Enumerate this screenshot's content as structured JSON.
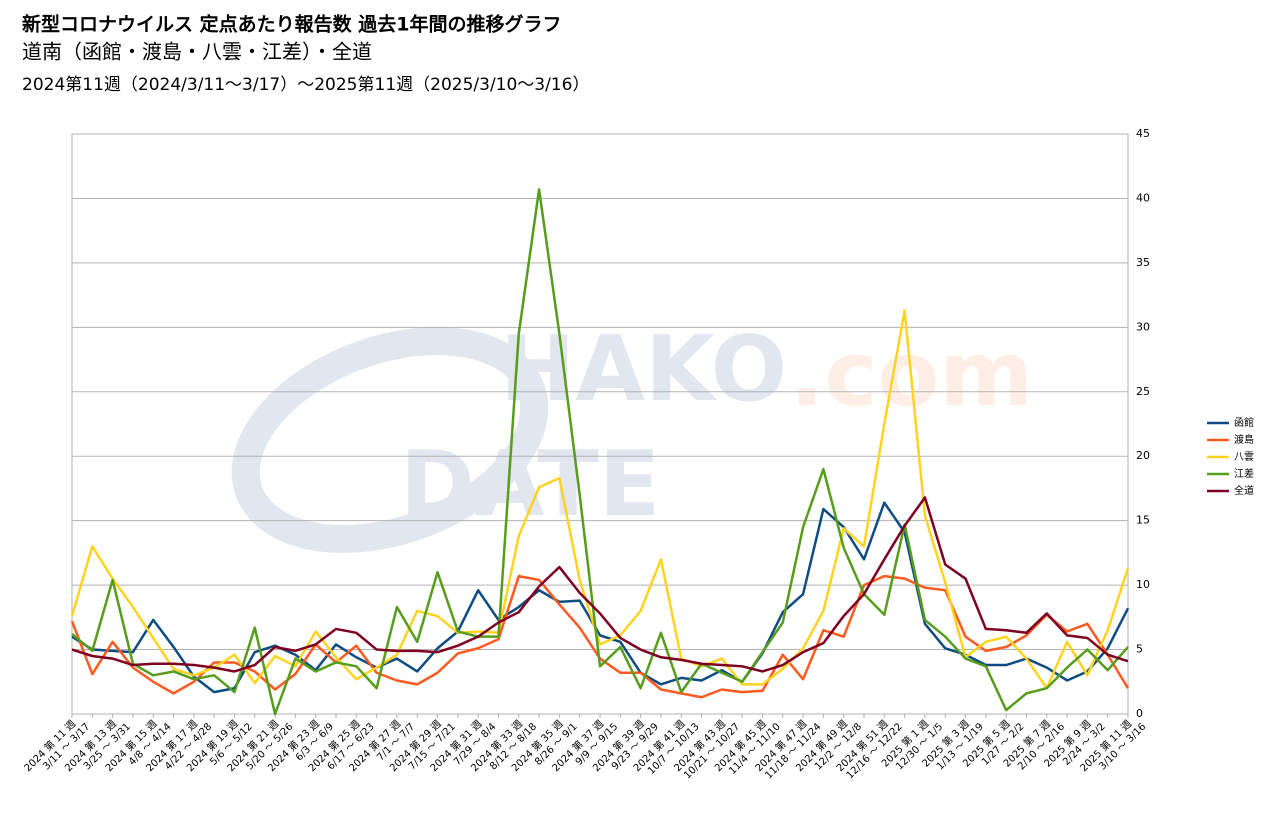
{
  "chart_data": {
    "type": "line",
    "title": "新型コロナウイルス 定点あたり報告数 過去1年間の推移グラフ",
    "subtitle": "道南（函館・渡島・八雲・江差）・全道",
    "period": "2024第11週（2024/3/11～3/17）～2025第11週（2025/3/10～3/16）",
    "watermark": [
      "HAKO",
      "DATE",
      ".com"
    ],
    "categories": [
      [
        "2024 第 11 週",
        "3/11 ～ 3/17"
      ],
      null,
      [
        "2024 第 13 週",
        "3/25 ～ 3/31"
      ],
      null,
      [
        "2024 第 15 週",
        "4/8 ～ 4/14"
      ],
      null,
      [
        "2024 第 17 週",
        "4/22 ～ 4/28"
      ],
      null,
      [
        "2024 第 19 週",
        "5/6 ～ 5/12"
      ],
      null,
      [
        "2024 第 21 週",
        "5/20 ～ 5/26"
      ],
      null,
      [
        "2024 第 23 週",
        "6/3 ～ 6/9"
      ],
      null,
      [
        "2024 第 25 週",
        "6/17 ～ 6/23"
      ],
      null,
      [
        "2024 第 27 週",
        "7/1 ～ 7/7"
      ],
      null,
      [
        "2024 第 29 週",
        "7/15 ～ 7/21"
      ],
      null,
      [
        "2024 第 31 週",
        "7/29 ～ 8/4"
      ],
      null,
      [
        "2024 第 33 週",
        "8/12 ～ 8/18"
      ],
      null,
      [
        "2024 第 35 週",
        "8/26 ～ 9/1"
      ],
      null,
      [
        "2024 第 37 週",
        "9/9 ～ 9/15"
      ],
      null,
      [
        "2024 第 39 週",
        "9/23 ～ 9/29"
      ],
      null,
      [
        "2024 第 41 週",
        "10/7 ～ 10/13"
      ],
      null,
      [
        "2024 第 43 週",
        "10/21 ～ 10/27"
      ],
      null,
      [
        "2024 第 45 週",
        "11/4 ～ 11/10"
      ],
      null,
      [
        "2024 第 47 週",
        "11/18 ～ 11/24"
      ],
      null,
      [
        "2024 第 49 週",
        "12/2 ～ 12/8"
      ],
      null,
      [
        "2024 第 51 週",
        "12/16 ～ 12/22"
      ],
      null,
      [
        "2025 第 1 週",
        "12/30 ～ 1/5"
      ],
      null,
      [
        "2025 第 3 週",
        "1/13 ～ 1/19"
      ],
      null,
      [
        "2025 第 5 週",
        "1/27 ～ 2/2"
      ],
      null,
      [
        "2025 第 7 週",
        "2/10 ～ 2/16"
      ],
      null,
      [
        "2025 第 9 週",
        "2/24 ～ 3/2"
      ],
      null,
      [
        "2025 第 11 週",
        "3/10 ～ 3/16"
      ]
    ],
    "series": [
      {
        "name": "函館",
        "color": "#0f4c81",
        "values": [
          6.0,
          5.0,
          4.9,
          4.8,
          7.3,
          5.2,
          2.9,
          1.7,
          2.0,
          4.8,
          5.3,
          4.6,
          3.4,
          5.4,
          4.4,
          3.6,
          4.3,
          3.3,
          5.1,
          6.4,
          9.6,
          7.3,
          8.3,
          9.6,
          8.7,
          8.8,
          6.1,
          5.6,
          3.2,
          2.3,
          2.8,
          2.6,
          3.4,
          2.5,
          4.7,
          7.9,
          9.3,
          15.9,
          14.5,
          12.0,
          16.4,
          14.1,
          7.0,
          5.1,
          4.6,
          3.8,
          3.8,
          4.3,
          3.6,
          2.6,
          3.3,
          5.1,
          8.2
        ]
      },
      {
        "name": "渡島",
        "color": "#ff5a1f",
        "values": [
          7.2,
          3.1,
          5.6,
          3.6,
          2.5,
          1.6,
          2.5,
          4.0,
          4.0,
          3.3,
          1.9,
          3.1,
          5.4,
          4.0,
          5.3,
          3.2,
          2.6,
          2.3,
          3.2,
          4.7,
          5.1,
          5.8,
          10.7,
          10.4,
          8.5,
          6.7,
          4.3,
          3.2,
          3.2,
          1.9,
          1.6,
          1.3,
          1.9,
          1.7,
          1.8,
          4.6,
          2.7,
          6.5,
          6.0,
          10.0,
          10.7,
          10.5,
          9.8,
          9.6,
          6.0,
          4.9,
          5.2,
          6.1,
          7.7,
          6.4,
          7.0,
          4.6,
          2.0
        ]
      },
      {
        "name": "八雲",
        "color": "#ffd320",
        "values": [
          7.6,
          13.0,
          10.5,
          8.3,
          5.9,
          3.5,
          3.0,
          3.6,
          4.6,
          2.4,
          4.5,
          3.7,
          6.4,
          4.4,
          2.7,
          3.6,
          4.6,
          8.0,
          7.6,
          6.3,
          6.4,
          6.3,
          13.8,
          17.6,
          18.3,
          10.4,
          5.4,
          6.1,
          8.0,
          12.0,
          4.3,
          3.7,
          4.3,
          2.3,
          2.3,
          3.5,
          5.1,
          8.0,
          14.4,
          13.0,
          22.5,
          31.3,
          15.4,
          10.2,
          4.4,
          5.6,
          6.0,
          4.3,
          2.0,
          5.6,
          3.0,
          6.5,
          11.3
        ]
      },
      {
        "name": "江差",
        "color": "#579d1c",
        "values": [
          6.2,
          4.9,
          10.4,
          3.9,
          3.0,
          3.3,
          2.7,
          3.0,
          1.7,
          6.7,
          0.0,
          4.3,
          3.3,
          4.0,
          3.7,
          2.0,
          8.3,
          5.6,
          11.0,
          6.4,
          6.0,
          6.0,
          29.5,
          40.7,
          29.5,
          17.0,
          3.7,
          5.2,
          2.0,
          6.3,
          1.7,
          3.9,
          3.2,
          2.5,
          4.8,
          7.1,
          14.5,
          19.0,
          12.9,
          9.3,
          7.7,
          14.7,
          7.3,
          6.0,
          4.3,
          3.7,
          0.3,
          1.6,
          2.0,
          3.6,
          5.0,
          3.4,
          5.2
        ]
      },
      {
        "name": "全道",
        "color": "#7e0021",
        "values": [
          5.0,
          4.5,
          4.3,
          3.8,
          3.9,
          3.9,
          3.8,
          3.6,
          3.3,
          3.8,
          5.2,
          4.9,
          5.4,
          6.6,
          6.3,
          5.0,
          4.9,
          4.9,
          4.8,
          5.3,
          6.0,
          7.1,
          7.9,
          9.9,
          11.4,
          9.4,
          7.8,
          5.9,
          5.0,
          4.4,
          4.2,
          3.9,
          3.8,
          3.7,
          3.3,
          3.8,
          4.8,
          5.5,
          7.6,
          9.3,
          12.0,
          14.6,
          16.8,
          11.6,
          10.5,
          6.6,
          6.5,
          6.3,
          7.8,
          6.1,
          5.9,
          4.6,
          4.1
        ]
      }
    ],
    "ylim": [
      0,
      45
    ],
    "yticks": [
      0,
      5,
      10,
      15,
      20,
      25,
      30,
      35,
      40,
      45
    ],
    "grid": true,
    "legend": "right"
  }
}
